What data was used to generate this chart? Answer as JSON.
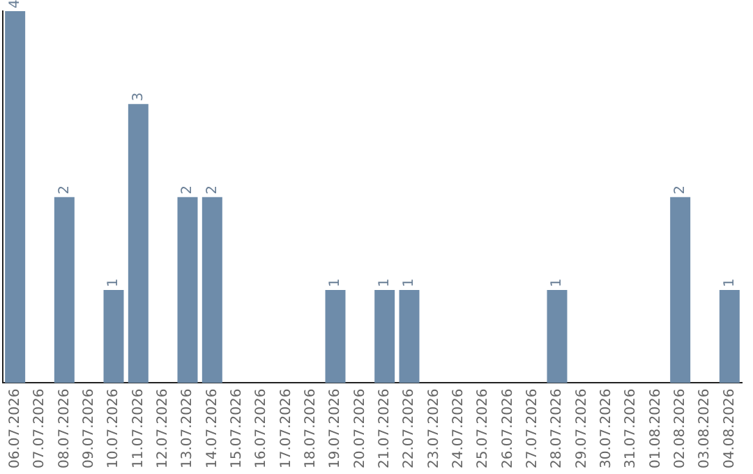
{
  "chart_data": {
    "type": "bar",
    "categories": [
      "06.07.2026",
      "07.07.2026",
      "08.07.2026",
      "09.07.2026",
      "10.07.2026",
      "11.07.2026",
      "12.07.2026",
      "13.07.2026",
      "14.07.2026",
      "15.07.2026",
      "16.07.2026",
      "17.07.2026",
      "18.07.2026",
      "19.07.2026",
      "20.07.2026",
      "21.07.2026",
      "22.07.2026",
      "23.07.2026",
      "24.07.2026",
      "25.07.2026",
      "26.07.2026",
      "27.07.2026",
      "28.07.2026",
      "29.07.2026",
      "30.07.2026",
      "31.07.2026",
      "01.08.2026",
      "02.08.2026",
      "03.08.2026",
      "04.08.2026"
    ],
    "values": [
      4,
      0,
      2,
      0,
      1,
      3,
      0,
      2,
      2,
      0,
      0,
      0,
      0,
      1,
      0,
      1,
      1,
      0,
      0,
      0,
      0,
      0,
      1,
      0,
      0,
      0,
      0,
      2,
      0,
      1
    ],
    "value_labels": [
      "4",
      null,
      "2",
      null,
      "1",
      "3",
      null,
      "2",
      "2",
      null,
      null,
      null,
      null,
      "1",
      null,
      "1",
      "1",
      null,
      null,
      null,
      null,
      null,
      "1",
      null,
      null,
      null,
      null,
      "2",
      null,
      "1"
    ],
    "color": "#6e8caa",
    "grid": false,
    "legend": false,
    "tick_labels": "x"
  }
}
